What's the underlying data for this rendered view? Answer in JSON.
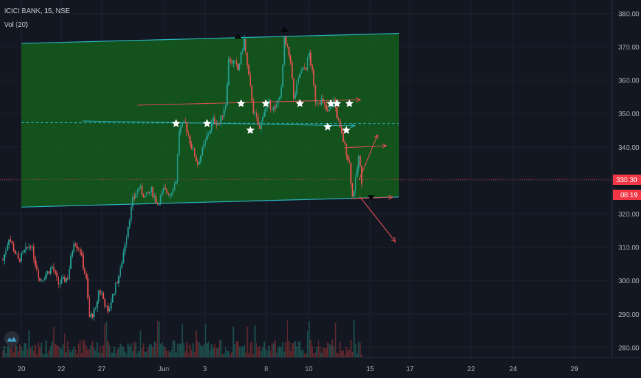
{
  "header": {
    "symbol_line": "ICICI BANK, 15, NSE",
    "volume_line": "Vol (20)"
  },
  "colors": {
    "background": "#131722",
    "grid": "#1e222d",
    "candle_up": "#26a69a",
    "candle_down": "#ef5350",
    "channel_fill": "#145c1c",
    "channel_line": "#2bb3c0",
    "arrow_line": "#e05050",
    "price_badge": "#f23645"
  },
  "chart_data": {
    "type": "candlestick",
    "symbol": "ICICI BANK",
    "interval": "15",
    "exchange": "NSE",
    "y_axis": {
      "ticks": [
        380,
        370,
        360,
        350,
        340,
        330,
        320,
        310,
        300,
        290,
        280
      ],
      "tick_labels": [
        "380.00",
        "370.00",
        "360.00",
        "350.00",
        "340.00",
        "330.00",
        "320.00",
        "310.00",
        "300.00",
        "290.00",
        "280.00"
      ],
      "range": [
        277,
        384
      ]
    },
    "x_axis": {
      "tick_labels": [
        "20",
        "22",
        "27",
        "Jun",
        "3",
        "8",
        "10",
        "15",
        "17",
        "22",
        "24",
        "29"
      ]
    },
    "current_price": {
      "value": 330.3,
      "label": "330.30",
      "countdown": "08:19"
    },
    "price_path": [
      [
        0,
        306
      ],
      [
        2,
        313
      ],
      [
        5,
        306
      ],
      [
        9,
        311
      ],
      [
        12,
        300
      ],
      [
        16,
        304
      ],
      [
        18,
        299
      ],
      [
        21,
        301
      ],
      [
        23,
        312
      ],
      [
        25,
        309
      ],
      [
        27,
        300
      ],
      [
        28,
        289
      ],
      [
        30,
        291
      ],
      [
        31,
        297
      ],
      [
        32,
        296
      ],
      [
        34,
        290
      ],
      [
        35,
        294
      ],
      [
        38,
        303
      ],
      [
        40,
        314
      ],
      [
        42,
        324
      ],
      [
        44,
        328
      ],
      [
        46,
        325
      ],
      [
        48,
        327
      ],
      [
        50,
        323
      ],
      [
        52,
        327
      ],
      [
        54,
        326
      ],
      [
        56,
        330
      ],
      [
        57,
        345
      ],
      [
        59,
        347
      ],
      [
        61,
        340
      ],
      [
        63,
        335
      ],
      [
        66,
        343
      ],
      [
        68,
        348
      ],
      [
        70,
        347
      ],
      [
        72,
        353
      ],
      [
        73,
        366
      ],
      [
        75,
        365
      ],
      [
        76,
        363
      ],
      [
        78,
        372
      ],
      [
        79,
        364
      ],
      [
        81,
        351
      ],
      [
        83,
        345
      ],
      [
        84,
        350
      ],
      [
        86,
        353
      ],
      [
        88,
        351
      ],
      [
        90,
        357
      ],
      [
        91,
        372
      ],
      [
        93,
        366
      ],
      [
        94,
        354
      ],
      [
        96,
        362
      ],
      [
        98,
        364
      ],
      [
        99,
        368
      ],
      [
        100,
        362
      ],
      [
        101,
        354
      ],
      [
        103,
        354
      ],
      [
        105,
        350
      ],
      [
        107,
        354
      ],
      [
        109,
        345
      ],
      [
        110,
        342
      ],
      [
        112,
        335
      ],
      [
        113,
        325
      ],
      [
        114,
        330
      ],
      [
        115,
        337
      ],
      [
        116,
        330
      ]
    ],
    "channel": {
      "upper": [
        [
          6,
          371
        ],
        [
          128,
          374
        ]
      ],
      "lower": [
        [
          6,
          322
        ],
        [
          128,
          325
        ]
      ]
    },
    "stars": [
      [
        56,
        347
      ],
      [
        66,
        347
      ],
      [
        77,
        353
      ],
      [
        80,
        345
      ],
      [
        85,
        353
      ],
      [
        96,
        353
      ],
      [
        105,
        346
      ],
      [
        106,
        353
      ],
      [
        108,
        353
      ],
      [
        111,
        345
      ],
      [
        112,
        353
      ]
    ],
    "markers": {
      "up": [
        [
          76,
          373
        ],
        [
          91,
          375
        ]
      ],
      "down": [
        [
          119,
          325
        ]
      ]
    }
  }
}
